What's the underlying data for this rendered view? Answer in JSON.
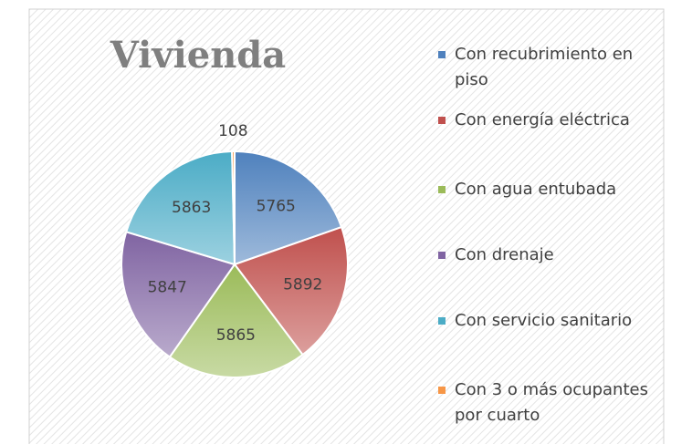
{
  "chart_data": {
    "type": "pie",
    "title": "Vivienda",
    "categories": [
      "Con recubrimiento en piso",
      "Con energía eléctrica",
      "Con agua entubada",
      "Con drenaje",
      "Con servicio sanitario",
      "Con 3 o más ocupantes por cuarto"
    ],
    "values": [
      5765,
      5892,
      5865,
      5847,
      5863,
      108
    ],
    "colors": [
      "#4f81bd",
      "#c0504d",
      "#9bbb59",
      "#8064a2",
      "#4bacc6",
      "#f79646"
    ],
    "legend": "right"
  }
}
